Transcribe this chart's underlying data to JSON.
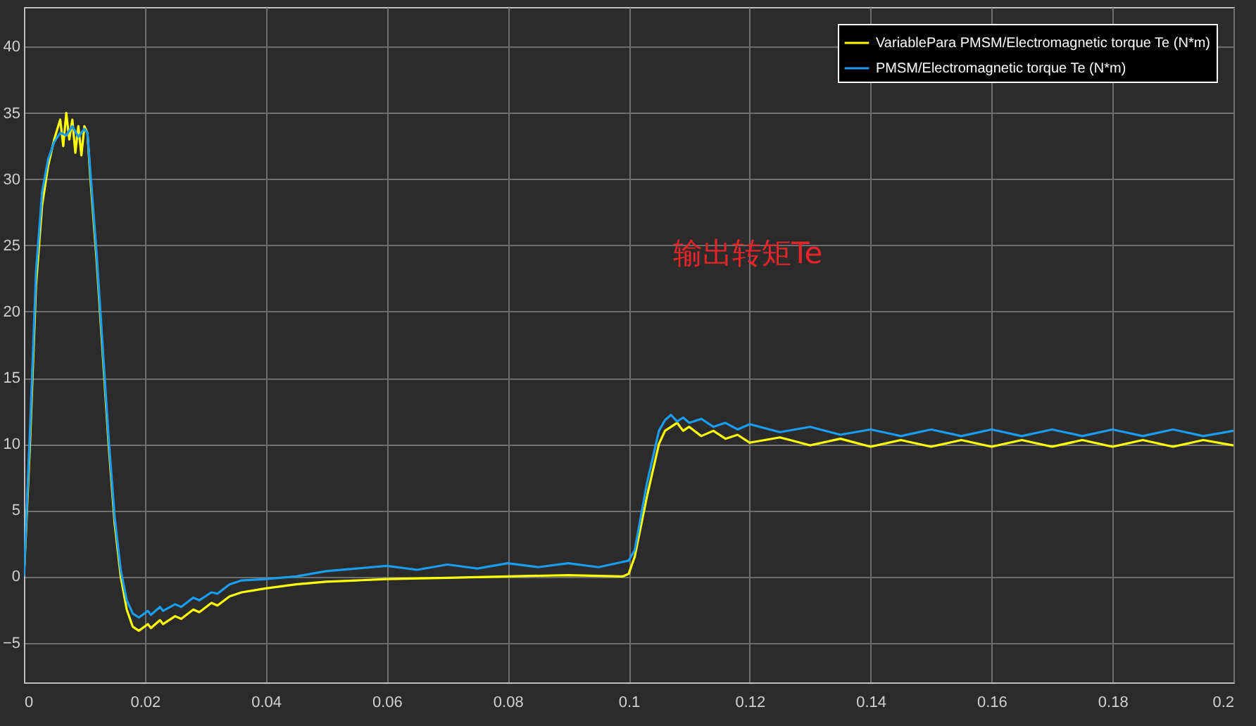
{
  "chart_data": {
    "type": "line",
    "xlim": [
      0,
      0.2
    ],
    "xticks": [
      0,
      0.02,
      0.04,
      0.06,
      0.08,
      0.1,
      0.12,
      0.14,
      0.16,
      0.18,
      0.2
    ],
    "ylim": [
      -8,
      43
    ],
    "yticks": [
      -5,
      0,
      5,
      10,
      15,
      20,
      25,
      30,
      35,
      40
    ],
    "grid": true,
    "legend": "top right",
    "line_style": "solid",
    "annotations": [
      "输出转矩Te"
    ],
    "series": [
      {
        "name": "VariablePara PMSM/Electromagnetic torque Te (N*m)",
        "color": "#ffff00",
        "x": [
          0,
          0.001,
          0.002,
          0.003,
          0.004,
          0.005,
          0.006,
          0.0065,
          0.007,
          0.0075,
          0.008,
          0.0085,
          0.009,
          0.0095,
          0.01,
          0.0105,
          0.011,
          0.012,
          0.013,
          0.014,
          0.015,
          0.016,
          0.017,
          0.018,
          0.019,
          0.0205,
          0.021,
          0.0225,
          0.023,
          0.025,
          0.026,
          0.028,
          0.029,
          0.031,
          0.032,
          0.034,
          0.036,
          0.04,
          0.045,
          0.05,
          0.055,
          0.06,
          0.07,
          0.08,
          0.09,
          0.099,
          0.1,
          0.101,
          0.103,
          0.105,
          0.106,
          0.108,
          0.109,
          0.11,
          0.112,
          0.114,
          0.116,
          0.118,
          0.12,
          0.125,
          0.13,
          0.135,
          0.14,
          0.145,
          0.15,
          0.155,
          0.16,
          0.165,
          0.17,
          0.175,
          0.18,
          0.185,
          0.19,
          0.195,
          0.2
        ],
        "values": [
          0,
          10,
          22,
          28,
          31,
          33,
          34.5,
          32.5,
          35,
          33,
          34.5,
          32,
          34,
          31.8,
          34,
          33.5,
          30,
          24,
          17,
          10,
          4,
          0,
          -2.5,
          -3.8,
          -4.1,
          -3.6,
          -3.9,
          -3.3,
          -3.6,
          -3,
          -3.2,
          -2.5,
          -2.7,
          -2,
          -2.2,
          -1.5,
          -1.2,
          -0.9,
          -0.6,
          -0.4,
          -0.3,
          -0.2,
          -0.1,
          0,
          0.1,
          0,
          0.2,
          1.5,
          6,
          10,
          11,
          11.6,
          11,
          11.3,
          10.6,
          11,
          10.4,
          10.7,
          10.1,
          10.5,
          9.9,
          10.4,
          9.8,
          10.3,
          9.8,
          10.3,
          9.8,
          10.3,
          9.8,
          10.3,
          9.8,
          10.3,
          9.8,
          10.3,
          9.9
        ]
      },
      {
        "name": "PMSM/Electromagnetic torque Te (N*m)",
        "color": "#1a9cf0",
        "x": [
          0,
          0.001,
          0.002,
          0.003,
          0.004,
          0.005,
          0.006,
          0.007,
          0.008,
          0.009,
          0.01,
          0.0105,
          0.011,
          0.012,
          0.013,
          0.014,
          0.015,
          0.016,
          0.017,
          0.018,
          0.019,
          0.0205,
          0.021,
          0.0225,
          0.023,
          0.025,
          0.026,
          0.028,
          0.029,
          0.031,
          0.032,
          0.034,
          0.036,
          0.04,
          0.045,
          0.05,
          0.055,
          0.06,
          0.065,
          0.07,
          0.075,
          0.08,
          0.085,
          0.09,
          0.095,
          0.099,
          0.1,
          0.101,
          0.103,
          0.105,
          0.106,
          0.107,
          0.108,
          0.109,
          0.11,
          0.112,
          0.114,
          0.116,
          0.118,
          0.12,
          0.125,
          0.13,
          0.135,
          0.14,
          0.145,
          0.15,
          0.155,
          0.16,
          0.165,
          0.17,
          0.175,
          0.18,
          0.185,
          0.19,
          0.195,
          0.2
        ],
        "values": [
          0,
          11,
          23,
          29,
          31.5,
          32.8,
          33.5,
          33.3,
          34,
          33.2,
          33.8,
          33.5,
          30.5,
          24.5,
          17.5,
          10.5,
          4.5,
          0.5,
          -1.8,
          -2.8,
          -3.1,
          -2.6,
          -2.9,
          -2.3,
          -2.6,
          -2.1,
          -2.3,
          -1.6,
          -1.8,
          -1.2,
          -1.3,
          -0.6,
          -0.3,
          -0.2,
          0,
          0.4,
          0.6,
          0.8,
          0.5,
          0.9,
          0.6,
          1,
          0.7,
          1,
          0.7,
          1.1,
          1.2,
          2,
          7,
          11,
          11.8,
          12.2,
          11.7,
          12,
          11.6,
          11.9,
          11.3,
          11.6,
          11.1,
          11.5,
          10.9,
          11.3,
          10.7,
          11.1,
          10.6,
          11.1,
          10.6,
          11.1,
          10.6,
          11.1,
          10.6,
          11.1,
          10.6,
          11.1,
          10.6,
          11
        ]
      }
    ]
  }
}
